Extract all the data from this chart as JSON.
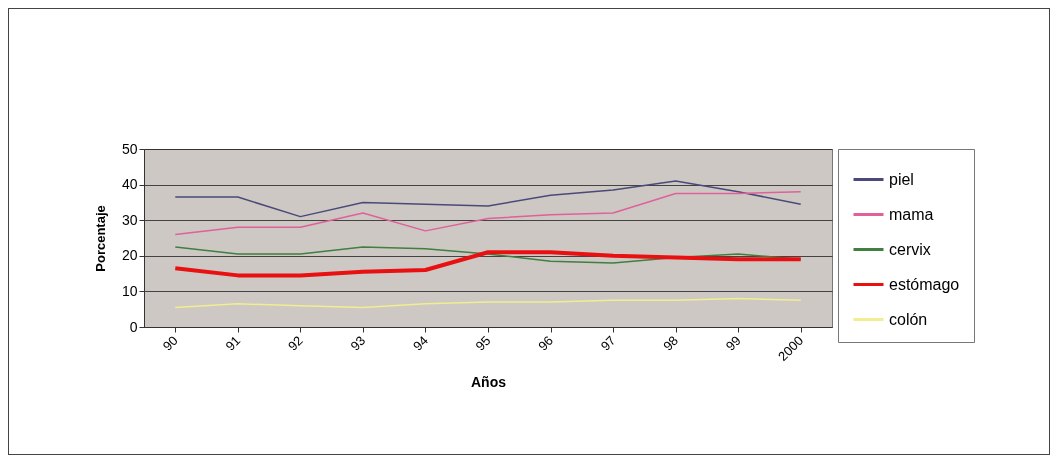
{
  "chart_data": {
    "type": "line",
    "xlabel": "Años",
    "ylabel": "Porcentaje",
    "categories": [
      "90",
      "91",
      "92",
      "93",
      "94",
      "95",
      "96",
      "97",
      "98",
      "99",
      "2000"
    ],
    "series": [
      {
        "name": "piel",
        "color": "#4a4a7a",
        "values": [
          36.5,
          36.5,
          31,
          35,
          34.5,
          34,
          37,
          38.5,
          41,
          38,
          34.5
        ]
      },
      {
        "name": "mama",
        "color": "#e0609a",
        "values": [
          26,
          28,
          28,
          32,
          27,
          30.5,
          31.5,
          32,
          37.5,
          37.5,
          38
        ]
      },
      {
        "name": "cervix",
        "color": "#3f7f3f",
        "values": [
          22.5,
          20.5,
          20.5,
          22.5,
          22,
          20.5,
          18.5,
          18,
          19.5,
          20.5,
          19
        ]
      },
      {
        "name": "estómago",
        "color": "#e81010",
        "values": [
          16.5,
          14.5,
          14.5,
          15.5,
          16,
          21,
          21,
          20,
          19.5,
          19,
          19
        ]
      },
      {
        "name": "colón",
        "color": "#f0ee90",
        "values": [
          5.5,
          6.5,
          6,
          5.5,
          6.5,
          7,
          7,
          7.5,
          7.5,
          8,
          7.5
        ]
      }
    ],
    "ylim": [
      0,
      50
    ],
    "yticks": [
      0,
      10,
      20,
      30,
      40,
      50
    ],
    "grid": "y",
    "legend": "right",
    "marker": "none",
    "line_style": "solid"
  }
}
